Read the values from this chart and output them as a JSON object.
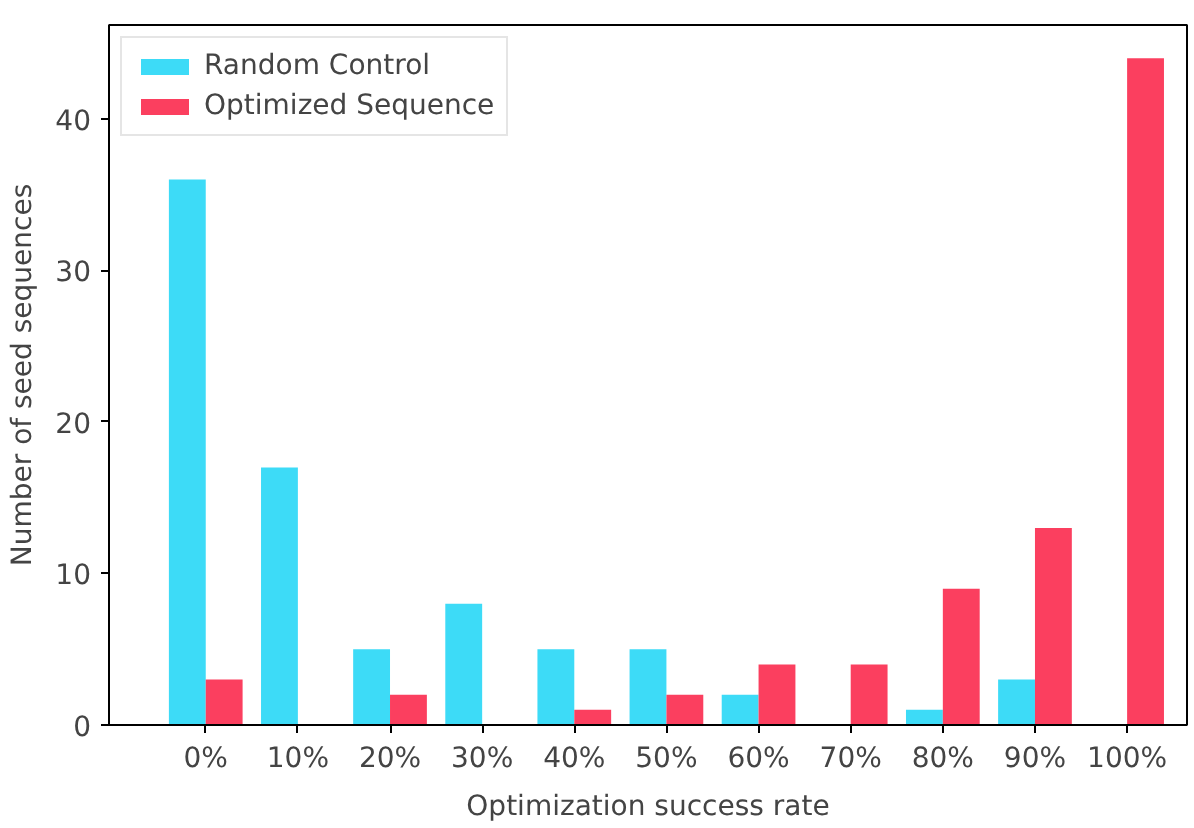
{
  "chart_data": {
    "type": "bar",
    "xlabel": "Optimization success rate",
    "ylabel": "Number of seed sequences",
    "categories": [
      "0%",
      "10%",
      "20%",
      "30%",
      "40%",
      "50%",
      "60%",
      "70%",
      "80%",
      "90%",
      "100%"
    ],
    "series": [
      {
        "name": "Random Control",
        "color": "#3ddbf7",
        "values": [
          36,
          17,
          5,
          8,
          5,
          5,
          2,
          0,
          1,
          3,
          0
        ]
      },
      {
        "name": "Optimized Sequence",
        "color": "#fb3f5f",
        "values": [
          3,
          0,
          2,
          0,
          1,
          2,
          4,
          4,
          9,
          13,
          44
        ]
      }
    ],
    "ylim": [
      0,
      46.2
    ],
    "yticks": [
      0,
      10,
      20,
      30,
      40
    ],
    "grid": false,
    "legend": "top left"
  }
}
